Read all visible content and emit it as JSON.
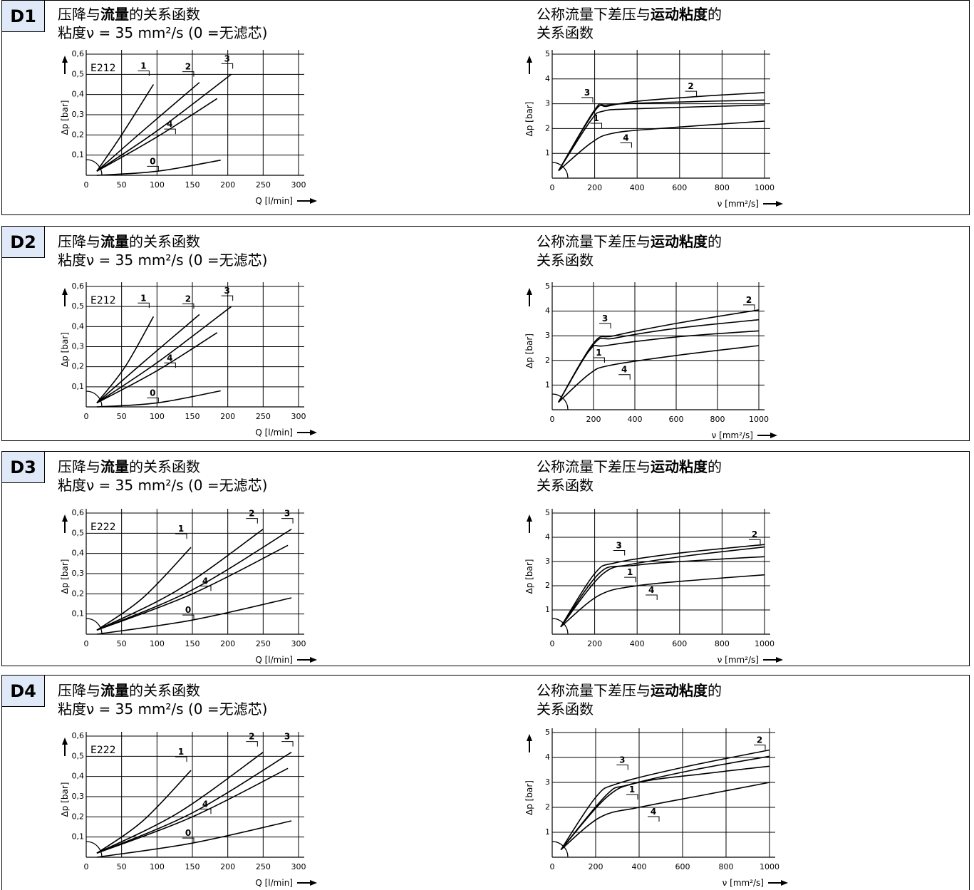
{
  "panels": [
    {
      "id": "D1",
      "left_title": {
        "line1_a": "压降与",
        "line1_b": "流量",
        "line1_c": "的关系函数",
        "line2": "粘度ν = 35 mm²/s (0 =无滤芯)"
      },
      "right_title": {
        "line1_a": "公称流量下差压与",
        "line1_b": "运动粘度",
        "line1_c": "的",
        "line2": "关系函数"
      }
    },
    {
      "id": "D2",
      "left_title": {
        "line1_a": "压降与",
        "line1_b": "流量",
        "line1_c": "的关系函数",
        "line2": "粘度ν = 35 mm²/s (0 =无滤芯)"
      },
      "right_title": {
        "line1_a": "公称流量下差压与",
        "line1_b": "运动粘度",
        "line1_c": "的",
        "line2": "关系函数"
      }
    },
    {
      "id": "D3",
      "left_title": {
        "line1_a": "压降与",
        "line1_b": "流量",
        "line1_c": "的关系函数",
        "line2": "粘度ν = 35 mm²/s (0 =无滤芯)"
      },
      "right_title": {
        "line1_a": "公称流量下差压与",
        "line1_b": "运动粘度",
        "line1_c": "的",
        "line2": "关系函数"
      }
    },
    {
      "id": "D4",
      "left_title": {
        "line1_a": "压降与",
        "line1_b": "流量",
        "line1_c": "的关系函数",
        "line2": "粘度ν = 35 mm²/s (0 =无滤芯)"
      },
      "right_title": {
        "line1_a": "公称流量下差压与",
        "line1_b": "运动粘度",
        "line1_c": "的",
        "line2": "关系函数"
      }
    }
  ],
  "chart_data": [
    {
      "panel": "D1",
      "type": "line",
      "model_label": "E212",
      "xlabel": "Q [l/min]",
      "ylabel": "Δp [bar]",
      "xlim": [
        0,
        300
      ],
      "ylim": [
        0,
        0.6
      ],
      "xticks": [
        0,
        50,
        100,
        150,
        200,
        250,
        300
      ],
      "yticks": [
        0.1,
        0.2,
        0.3,
        0.4,
        0.5,
        0.6
      ],
      "ytick_labels": [
        "0,1",
        "0,2",
        "0,3",
        "0,4",
        "0,5",
        "0,6"
      ],
      "series": [
        {
          "name": "1",
          "points": [
            [
              15,
              0.02
            ],
            [
              50,
              0.2
            ],
            [
              95,
              0.45
            ]
          ]
        },
        {
          "name": "2",
          "points": [
            [
              15,
              0.02
            ],
            [
              80,
              0.22
            ],
            [
              160,
              0.46
            ]
          ]
        },
        {
          "name": "3",
          "points": [
            [
              15,
              0.02
            ],
            [
              100,
              0.22
            ],
            [
              205,
              0.5
            ]
          ]
        },
        {
          "name": "4",
          "points": [
            [
              15,
              0.02
            ],
            [
              100,
              0.19
            ],
            [
              185,
              0.38
            ]
          ]
        },
        {
          "name": "0",
          "points": [
            [
              15,
              0.0
            ],
            [
              100,
              0.02
            ],
            [
              190,
              0.075
            ]
          ]
        }
      ]
    },
    {
      "panel": "D1",
      "type": "line",
      "xlabel": "ν [mm²/s]",
      "ylabel": "Δp [bar]",
      "xlim": [
        0,
        1000
      ],
      "ylim": [
        0,
        5
      ],
      "xticks": [
        0,
        200,
        400,
        600,
        800,
        1000
      ],
      "yticks": [
        1,
        2,
        3,
        4,
        5
      ],
      "series": [
        {
          "name": "2",
          "points": [
            [
              30,
              0.3
            ],
            [
              200,
              2.7
            ],
            [
              260,
              2.9
            ],
            [
              400,
              3.1
            ],
            [
              700,
              3.3
            ],
            [
              1000,
              3.45
            ]
          ]
        },
        {
          "name": "3",
          "points": [
            [
              30,
              0.3
            ],
            [
              200,
              2.75
            ],
            [
              260,
              2.95
            ],
            [
              500,
              3.05
            ],
            [
              1000,
              3.15
            ]
          ]
        },
        {
          "name": "1",
          "points": [
            [
              30,
              0.3
            ],
            [
              180,
              2.3
            ],
            [
              240,
              2.7
            ],
            [
              400,
              2.8
            ],
            [
              1000,
              2.95
            ]
          ]
        },
        {
          "name": "4",
          "points": [
            [
              30,
              0.3
            ],
            [
              180,
              1.4
            ],
            [
              280,
              1.8
            ],
            [
              500,
              2.0
            ],
            [
              1000,
              2.3
            ]
          ]
        }
      ]
    },
    {
      "panel": "D2",
      "type": "line",
      "model_label": "E212",
      "xlabel": "Q [l/min]",
      "ylabel": "Δp [bar]",
      "xlim": [
        0,
        300
      ],
      "ylim": [
        0,
        0.6
      ],
      "xticks": [
        0,
        50,
        100,
        150,
        200,
        250,
        300
      ],
      "yticks": [
        0.1,
        0.2,
        0.3,
        0.4,
        0.5,
        0.6
      ],
      "ytick_labels": [
        "0,1",
        "0,2",
        "0,3",
        "0,4",
        "0,5",
        "0,6"
      ],
      "series": [
        {
          "name": "1",
          "points": [
            [
              15,
              0.02
            ],
            [
              55,
              0.2
            ],
            [
              95,
              0.45
            ]
          ]
        },
        {
          "name": "2",
          "points": [
            [
              15,
              0.02
            ],
            [
              80,
              0.22
            ],
            [
              160,
              0.46
            ]
          ]
        },
        {
          "name": "3",
          "points": [
            [
              15,
              0.02
            ],
            [
              100,
              0.22
            ],
            [
              205,
              0.5
            ]
          ]
        },
        {
          "name": "4",
          "points": [
            [
              15,
              0.02
            ],
            [
              100,
              0.18
            ],
            [
              185,
              0.37
            ]
          ]
        },
        {
          "name": "0",
          "points": [
            [
              15,
              0.0
            ],
            [
              100,
              0.02
            ],
            [
              190,
              0.08
            ]
          ]
        }
      ]
    },
    {
      "panel": "D2",
      "type": "line",
      "xlabel": "ν [mm²/s]",
      "ylabel": "Δp [bar]",
      "xlim": [
        0,
        1000
      ],
      "ylim": [
        0,
        5
      ],
      "xticks": [
        0,
        200,
        400,
        600,
        800,
        1000
      ],
      "yticks": [
        1,
        2,
        3,
        4,
        5
      ],
      "series": [
        {
          "name": "2",
          "points": [
            [
              30,
              0.3
            ],
            [
              200,
              2.7
            ],
            [
              300,
              3.0
            ],
            [
              600,
              3.5
            ],
            [
              1000,
              4.05
            ]
          ]
        },
        {
          "name": "3",
          "points": [
            [
              30,
              0.3
            ],
            [
              200,
              2.65
            ],
            [
              300,
              2.9
            ],
            [
              600,
              3.3
            ],
            [
              1000,
              3.65
            ]
          ]
        },
        {
          "name": "1",
          "points": [
            [
              30,
              0.3
            ],
            [
              180,
              2.4
            ],
            [
              260,
              2.6
            ],
            [
              600,
              2.95
            ],
            [
              1000,
              3.2
            ]
          ]
        },
        {
          "name": "4",
          "points": [
            [
              30,
              0.3
            ],
            [
              180,
              1.45
            ],
            [
              280,
              1.8
            ],
            [
              600,
              2.2
            ],
            [
              1000,
              2.6
            ]
          ]
        }
      ]
    },
    {
      "panel": "D3",
      "type": "line",
      "model_label": "E222",
      "xlabel": "Q [l/min]",
      "ylabel": "Δp [bar]",
      "xlim": [
        0,
        300
      ],
      "ylim": [
        0,
        0.6
      ],
      "xticks": [
        0,
        50,
        100,
        150,
        200,
        250,
        300
      ],
      "yticks": [
        0.1,
        0.2,
        0.3,
        0.4,
        0.5,
        0.6
      ],
      "ytick_labels": [
        "0,1",
        "0,2",
        "0,3",
        "0,4",
        "0,5",
        "0,6"
      ],
      "series": [
        {
          "name": "1",
          "points": [
            [
              15,
              0.02
            ],
            [
              80,
              0.18
            ],
            [
              148,
              0.43
            ]
          ]
        },
        {
          "name": "2",
          "points": [
            [
              15,
              0.02
            ],
            [
              130,
              0.22
            ],
            [
              250,
              0.52
            ]
          ]
        },
        {
          "name": "3",
          "points": [
            [
              15,
              0.02
            ],
            [
              150,
              0.22
            ],
            [
              290,
              0.52
            ]
          ]
        },
        {
          "name": "4",
          "points": [
            [
              15,
              0.02
            ],
            [
              150,
              0.2
            ],
            [
              285,
              0.44
            ]
          ]
        },
        {
          "name": "0",
          "points": [
            [
              15,
              0.0
            ],
            [
              150,
              0.07
            ],
            [
              290,
              0.18
            ]
          ]
        }
      ]
    },
    {
      "panel": "D3",
      "type": "line",
      "xlabel": "ν [mm²/s]",
      "ylabel": "Δp [bar]",
      "xlim": [
        0,
        1000
      ],
      "ylim": [
        0,
        5
      ],
      "xticks": [
        0,
        200,
        400,
        600,
        800,
        1000
      ],
      "yticks": [
        1,
        2,
        3,
        4,
        5
      ],
      "series": [
        {
          "name": "2",
          "points": [
            [
              40,
              0.3
            ],
            [
              200,
              2.5
            ],
            [
              300,
              2.95
            ],
            [
              600,
              3.35
            ],
            [
              1000,
              3.7
            ]
          ]
        },
        {
          "name": "3",
          "points": [
            [
              40,
              0.3
            ],
            [
              220,
              2.5
            ],
            [
              350,
              2.85
            ],
            [
              650,
              3.25
            ],
            [
              1000,
              3.6
            ]
          ]
        },
        {
          "name": "1",
          "points": [
            [
              40,
              0.3
            ],
            [
              240,
              2.5
            ],
            [
              400,
              2.85
            ],
            [
              700,
              3.05
            ],
            [
              1000,
              3.2
            ]
          ]
        },
        {
          "name": "4",
          "points": [
            [
              40,
              0.3
            ],
            [
              220,
              1.6
            ],
            [
              400,
              2.0
            ],
            [
              700,
              2.25
            ],
            [
              1000,
              2.45
            ]
          ]
        }
      ]
    },
    {
      "panel": "D4",
      "type": "line",
      "model_label": "E222",
      "xlabel": "Q [l/min]",
      "ylabel": "Δp [bar]",
      "xlim": [
        0,
        300
      ],
      "ylim": [
        0,
        0.6
      ],
      "xticks": [
        0,
        50,
        100,
        150,
        200,
        250,
        300
      ],
      "yticks": [
        0.1,
        0.2,
        0.3,
        0.4,
        0.5,
        0.6
      ],
      "ytick_labels": [
        "0,1",
        "0,2",
        "0,3",
        "0,4",
        "0,5",
        "0,6"
      ],
      "series": [
        {
          "name": "1",
          "points": [
            [
              15,
              0.02
            ],
            [
              80,
              0.18
            ],
            [
              148,
              0.43
            ]
          ]
        },
        {
          "name": "2",
          "points": [
            [
              15,
              0.02
            ],
            [
              130,
              0.22
            ],
            [
              250,
              0.52
            ]
          ]
        },
        {
          "name": "3",
          "points": [
            [
              15,
              0.02
            ],
            [
              150,
              0.22
            ],
            [
              290,
              0.52
            ]
          ]
        },
        {
          "name": "4",
          "points": [
            [
              15,
              0.02
            ],
            [
              150,
              0.2
            ],
            [
              285,
              0.44
            ]
          ]
        },
        {
          "name": "0",
          "points": [
            [
              15,
              0.0
            ],
            [
              150,
              0.07
            ],
            [
              290,
              0.18
            ]
          ]
        }
      ]
    },
    {
      "panel": "D4",
      "type": "line",
      "xlabel": "ν [mm²/s]",
      "ylabel": "Δp [bar]",
      "xlim": [
        0,
        1000
      ],
      "ylim": [
        0,
        5
      ],
      "xticks": [
        0,
        200,
        400,
        600,
        800,
        1000
      ],
      "yticks": [
        1,
        2,
        3,
        4,
        5
      ],
      "series": [
        {
          "name": "2",
          "points": [
            [
              40,
              0.3
            ],
            [
              200,
              2.4
            ],
            [
              300,
              2.95
            ],
            [
              600,
              3.6
            ],
            [
              1000,
              4.3
            ]
          ]
        },
        {
          "name": "3",
          "points": [
            [
              40,
              0.3
            ],
            [
              250,
              2.5
            ],
            [
              350,
              2.9
            ],
            [
              650,
              3.5
            ],
            [
              1000,
              4.05
            ]
          ]
        },
        {
          "name": "1",
          "points": [
            [
              40,
              0.3
            ],
            [
              250,
              2.4
            ],
            [
              400,
              3.0
            ],
            [
              700,
              3.35
            ],
            [
              1000,
              3.65
            ]
          ]
        },
        {
          "name": "4",
          "points": [
            [
              40,
              0.3
            ],
            [
              220,
              1.6
            ],
            [
              400,
              2.0
            ],
            [
              700,
              2.5
            ],
            [
              1000,
              3.0
            ]
          ]
        }
      ]
    }
  ]
}
